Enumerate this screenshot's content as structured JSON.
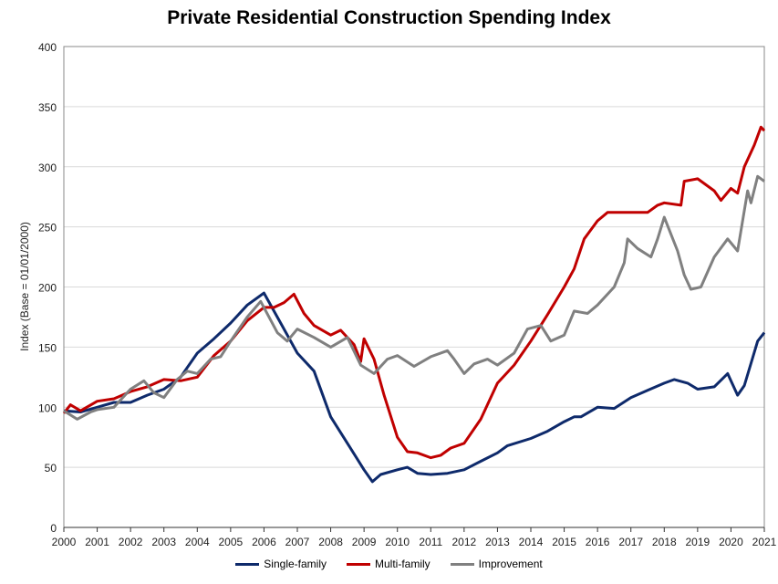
{
  "chart_data": {
    "type": "line",
    "title": "Private Residential Construction Spending Index",
    "xlabel": "",
    "ylabel": "Index  (Base = 01/01/2000)",
    "xlim": [
      2000,
      2021
    ],
    "ylim": [
      0,
      400
    ],
    "xticks": [
      "2000",
      "2001",
      "2002",
      "2003",
      "2004",
      "2005",
      "2006",
      "2007",
      "2008",
      "2009",
      "2010",
      "2011",
      "2012",
      "2013",
      "2014",
      "2015",
      "2016",
      "2017",
      "2018",
      "2019",
      "2020",
      "2021"
    ],
    "yticks": [
      "0",
      "50",
      "100",
      "150",
      "200",
      "250",
      "300",
      "350",
      "400"
    ],
    "grid": "horizontal",
    "legend": "bottom",
    "series": [
      {
        "name": "Single-family",
        "color": "#0e2a6b",
        "x": [
          2000,
          2000.5,
          2001,
          2001.5,
          2002,
          2002.5,
          2003,
          2003.5,
          2004,
          2004.5,
          2005,
          2005.5,
          2006,
          2006.5,
          2007,
          2007.5,
          2008,
          2008.5,
          2009,
          2009.25,
          2009.5,
          2010,
          2010.3,
          2010.6,
          2011,
          2011.5,
          2012,
          2012.5,
          2013,
          2013.3,
          2014,
          2014.5,
          2015,
          2015.3,
          2015.5,
          2016,
          2016.5,
          2017,
          2017.5,
          2018,
          2018.3,
          2018.7,
          2019,
          2019.5,
          2019.9,
          2020,
          2020.2,
          2020.4,
          2020.8,
          2021
        ],
        "y": [
          97,
          96,
          100,
          104,
          104,
          110,
          115,
          125,
          145,
          157,
          170,
          185,
          195,
          170,
          145,
          130,
          92,
          70,
          48,
          38,
          44,
          48,
          50,
          45,
          44,
          45,
          48,
          55,
          62,
          68,
          74,
          80,
          88,
          92,
          92,
          100,
          99,
          108,
          114,
          120,
          123,
          120,
          115,
          117,
          128,
          122,
          110,
          118,
          155,
          162
        ]
      },
      {
        "name": "Multi-family",
        "color": "#c00000",
        "x": [
          2000,
          2000.2,
          2000.5,
          2001,
          2001.5,
          2002,
          2002.5,
          2003,
          2003.5,
          2004,
          2004.5,
          2005,
          2005.5,
          2006,
          2006.3,
          2006.6,
          2006.9,
          2007.2,
          2007.5,
          2008,
          2008.3,
          2008.7,
          2008.9,
          2009,
          2009.3,
          2009.6,
          2010,
          2010.3,
          2010.6,
          2011,
          2011.3,
          2011.6,
          2012,
          2012.5,
          2013,
          2013.5,
          2014,
          2014.5,
          2015,
          2015.3,
          2015.6,
          2016,
          2016.3,
          2016.7,
          2017,
          2017.5,
          2017.8,
          2018,
          2018.5,
          2018.6,
          2019,
          2019.5,
          2019.7,
          2020,
          2020.2,
          2020.4,
          2020.7,
          2020.9,
          2021
        ],
        "y": [
          95,
          102,
          97,
          105,
          107,
          113,
          117,
          123,
          122,
          125,
          143,
          155,
          172,
          183,
          183,
          187,
          194,
          178,
          168,
          160,
          164,
          152,
          138,
          157,
          140,
          110,
          75,
          63,
          62,
          58,
          60,
          66,
          70,
          90,
          120,
          135,
          155,
          177,
          200,
          215,
          240,
          255,
          262,
          262,
          262,
          262,
          268,
          270,
          268,
          288,
          290,
          280,
          272,
          282,
          278,
          300,
          318,
          333,
          330
        ]
      },
      {
        "name": "Improvement",
        "color": "#808080",
        "x": [
          2000,
          2000.4,
          2000.8,
          2001,
          2001.5,
          2002,
          2002.4,
          2002.7,
          2003,
          2003.4,
          2003.7,
          2004,
          2004.4,
          2004.7,
          2005,
          2005.5,
          2005.9,
          2006.4,
          2006.7,
          2007,
          2007.5,
          2008,
          2008.5,
          2008.9,
          2009.3,
          2009.7,
          2010,
          2010.5,
          2011,
          2011.5,
          2011.7,
          2012,
          2012.3,
          2012.7,
          2013,
          2013.5,
          2013.9,
          2014.3,
          2014.6,
          2015,
          2015.3,
          2015.7,
          2016,
          2016.5,
          2016.8,
          2016.9,
          2017.2,
          2017.6,
          2017.8,
          2018,
          2018.4,
          2018.6,
          2018.8,
          2019.1,
          2019.5,
          2019.9,
          2020.2,
          2020.5,
          2020.6,
          2020.8,
          2021
        ],
        "y": [
          97,
          90,
          96,
          98,
          100,
          115,
          122,
          112,
          108,
          123,
          130,
          128,
          140,
          142,
          155,
          175,
          188,
          162,
          155,
          165,
          158,
          150,
          158,
          135,
          128,
          140,
          143,
          134,
          142,
          147,
          140,
          128,
          136,
          140,
          135,
          145,
          165,
          168,
          155,
          160,
          180,
          178,
          185,
          200,
          220,
          240,
          232,
          225,
          240,
          258,
          230,
          210,
          198,
          200,
          225,
          240,
          230,
          280,
          270,
          292,
          288
        ]
      }
    ]
  }
}
